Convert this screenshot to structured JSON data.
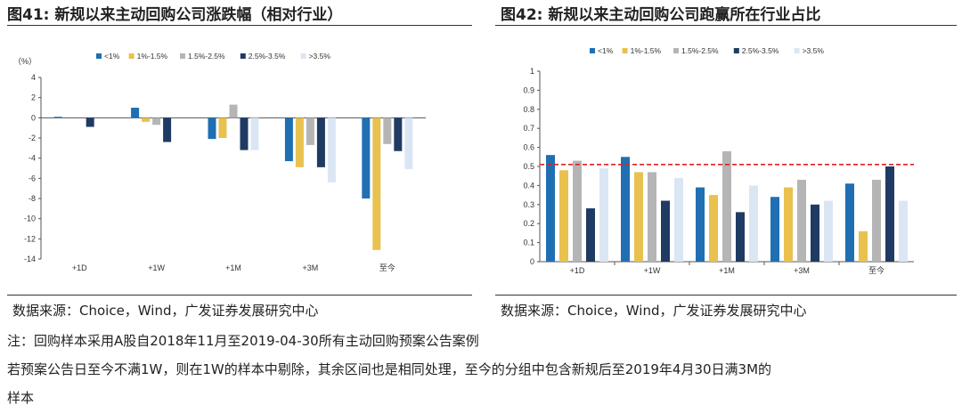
{
  "chart_left": {
    "figure_label": "图41:",
    "title": "新规以来主动回购公司涨跌幅（相对行业）",
    "source": "数据来源：Choice，Wind，广发证券发展研究中心"
  },
  "chart_right": {
    "figure_label": "图42:",
    "title": "新规以来主动回购公司跑赢所在行业占比",
    "source": "数据来源：Choice，Wind，广发证券发展研究中心"
  },
  "notes": {
    "line1": "注：回购样本采用A股自2018年11月至2019-04-30所有主动回购预案公告案例",
    "line2": "若预案公告日至今不满1W，则在1W的样本中剔除，其余区间也是相同处理，至今的分组中包含新规后至2019年4月30日满3M的",
    "line3": "样本"
  },
  "chart_data": [
    {
      "type": "bar",
      "title": "新规以来主动回购公司涨跌幅（相对行业）",
      "ylabel": "（%）",
      "categories": [
        "+1D",
        "+1W",
        "+1M",
        "+3M",
        "至今"
      ],
      "ylim": [
        -14,
        4
      ],
      "yticks": [
        4,
        2,
        0,
        -2,
        -4,
        -6,
        -8,
        -10,
        -12,
        -14
      ],
      "legend_position": "top",
      "series": [
        {
          "name": "<1%",
          "color": "#1f6fb2",
          "values": [
            0.1,
            1.0,
            -2.1,
            -4.3,
            -8.0
          ]
        },
        {
          "name": "1%-1.5%",
          "color": "#e8c14f",
          "values": [
            0.0,
            -0.4,
            -2.0,
            -4.9,
            -13.1
          ]
        },
        {
          "name": "1.5%-2.5%",
          "color": "#b5b5b5",
          "values": [
            0.0,
            -0.7,
            1.3,
            -2.7,
            -2.6
          ]
        },
        {
          "name": "2.5%-3.5%",
          "color": "#1f3b63",
          "values": [
            -0.9,
            -2.4,
            -3.2,
            -4.9,
            -3.3
          ]
        },
        {
          "name": ">3.5%",
          "color": "#dbe6f4",
          "values": [
            0.0,
            0.0,
            -3.2,
            -6.4,
            -5.1
          ]
        }
      ]
    },
    {
      "type": "bar",
      "title": "新规以来主动回购公司跑赢所在行业占比",
      "ylabel": "",
      "categories": [
        "+1D",
        "+1W",
        "+1M",
        "+3M",
        "至今"
      ],
      "ylim": [
        0,
        1
      ],
      "yticks": [
        1,
        0.9,
        0.8,
        0.7,
        0.6,
        0.5,
        0.4,
        0.3,
        0.2,
        0.1,
        0
      ],
      "reference_line": {
        "value": 0.51,
        "color": "#e02020",
        "style": "dashed"
      },
      "legend_position": "top",
      "series": [
        {
          "name": "<1%",
          "color": "#1f6fb2",
          "values": [
            0.56,
            0.55,
            0.39,
            0.34,
            0.41
          ]
        },
        {
          "name": "1%-1.5%",
          "color": "#e8c14f",
          "values": [
            0.48,
            0.47,
            0.35,
            0.39,
            0.16
          ]
        },
        {
          "name": "1.5%-2.5%",
          "color": "#b5b5b5",
          "values": [
            0.53,
            0.47,
            0.58,
            0.43,
            0.43
          ]
        },
        {
          "name": "2.5%-3.5%",
          "color": "#1f3b63",
          "values": [
            0.28,
            0.32,
            0.26,
            0.3,
            0.5
          ]
        },
        {
          "name": ">3.5%",
          "color": "#dbe6f4",
          "values": [
            0.49,
            0.44,
            0.4,
            0.32,
            0.32
          ]
        }
      ]
    }
  ]
}
